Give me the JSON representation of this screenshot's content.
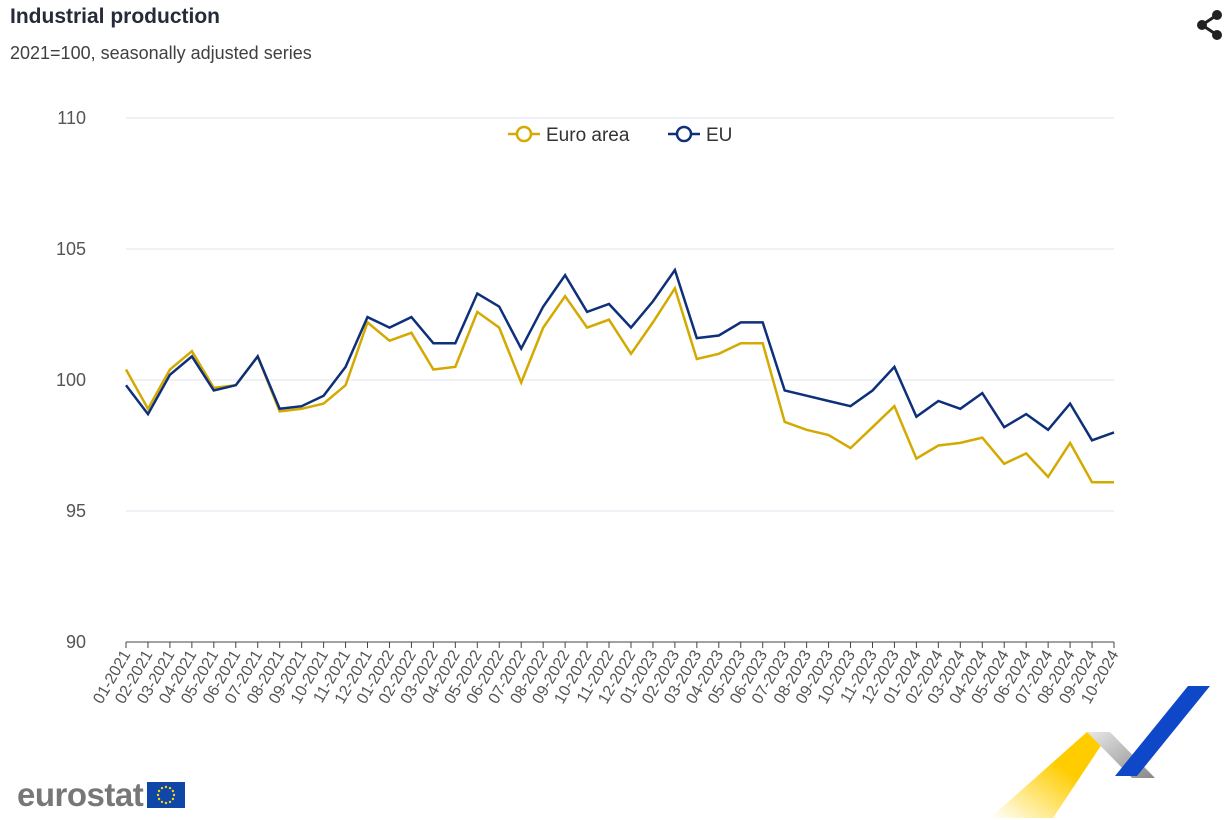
{
  "header": {
    "title": "Industrial production",
    "subtitle": "2021=100, seasonally adjusted series"
  },
  "icons": {
    "share": "share-icon",
    "logo": "eurostat-logo"
  },
  "logo": {
    "text": "eurostat"
  },
  "chart_data": {
    "type": "line",
    "title": "Industrial production",
    "subtitle": "2021=100, seasonally adjusted series",
    "xlabel": "",
    "ylabel": "",
    "ylim": [
      90,
      110
    ],
    "yticks": [
      90,
      95,
      100,
      105,
      110
    ],
    "grid": true,
    "legend": "top-center",
    "categories": [
      "01-2021",
      "02-2021",
      "03-2021",
      "04-2021",
      "05-2021",
      "06-2021",
      "07-2021",
      "08-2021",
      "09-2021",
      "10-2021",
      "11-2021",
      "12-2021",
      "01-2022",
      "02-2022",
      "03-2022",
      "04-2022",
      "05-2022",
      "06-2022",
      "07-2022",
      "08-2022",
      "09-2022",
      "10-2022",
      "11-2022",
      "12-2022",
      "01-2023",
      "02-2023",
      "03-2023",
      "04-2023",
      "05-2023",
      "06-2023",
      "07-2023",
      "08-2023",
      "09-2023",
      "10-2023",
      "11-2023",
      "12-2023",
      "01-2024",
      "02-2024",
      "03-2024",
      "04-2024",
      "05-2024",
      "06-2024",
      "07-2024",
      "08-2024",
      "09-2024",
      "10-2024"
    ],
    "series": [
      {
        "name": "Euro area",
        "color": "#d4a900",
        "values": [
          100.4,
          98.9,
          100.4,
          101.1,
          99.7,
          99.8,
          100.9,
          98.8,
          98.9,
          99.1,
          99.8,
          102.2,
          101.5,
          101.8,
          100.4,
          100.5,
          102.6,
          102.0,
          99.9,
          102.0,
          103.2,
          102.0,
          102.3,
          101.0,
          102.2,
          103.5,
          100.8,
          101.0,
          101.4,
          101.4,
          98.4,
          98.1,
          97.9,
          97.4,
          98.2,
          99.0,
          97.0,
          97.5,
          97.6,
          97.8,
          96.8,
          97.2,
          96.3,
          97.6,
          96.1,
          96.1
        ]
      },
      {
        "name": "EU",
        "color": "#0e2f7a",
        "values": [
          99.8,
          98.7,
          100.2,
          100.9,
          99.6,
          99.8,
          100.9,
          98.9,
          99.0,
          99.4,
          100.5,
          102.4,
          102.0,
          102.4,
          101.4,
          101.4,
          103.3,
          102.8,
          101.2,
          102.8,
          104.0,
          102.6,
          102.9,
          102.0,
          103.0,
          104.2,
          101.6,
          101.7,
          102.2,
          102.2,
          99.6,
          99.4,
          99.2,
          99.0,
          99.6,
          100.5,
          98.6,
          99.2,
          98.9,
          99.5,
          98.2,
          98.7,
          98.1,
          99.1,
          97.7,
          98.0
        ]
      }
    ]
  }
}
